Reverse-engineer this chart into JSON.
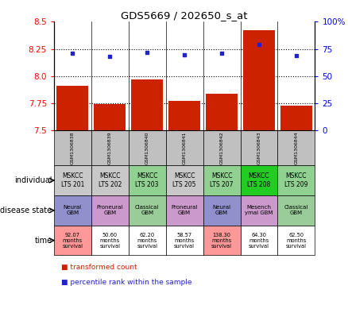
{
  "title": "GDS5669 / 202650_s_at",
  "samples": [
    "GSM1306838",
    "GSM1306839",
    "GSM1306840",
    "GSM1306841",
    "GSM1306842",
    "GSM1306843",
    "GSM1306844"
  ],
  "bar_values": [
    7.91,
    7.74,
    7.97,
    7.77,
    7.84,
    8.42,
    7.73
  ],
  "dot_values": [
    71,
    68,
    72,
    70,
    71,
    79,
    69
  ],
  "ylim_left": [
    7.5,
    8.5
  ],
  "ylim_right": [
    0,
    100
  ],
  "yticks_left": [
    7.5,
    7.75,
    8.0,
    8.25,
    8.5
  ],
  "yticks_right": [
    0,
    25,
    50,
    75,
    100
  ],
  "individual_labels": [
    "MSKCC\nLTS 201",
    "MSKCC\nLTS 202",
    "MSKCC\nLTS 203",
    "MSKCC\nLTS 205",
    "MSKCC\nLTS 207",
    "MSKCC\nLTS 208",
    "MSKCC\nLTS 209"
  ],
  "individual_colors": [
    "#c8c8c8",
    "#c8c8c8",
    "#90d090",
    "#c8c8c8",
    "#90d090",
    "#22cc22",
    "#90d090"
  ],
  "disease_labels": [
    "Neural\nGBM",
    "Proneural\nGBM",
    "Classical\nGBM",
    "Proneural\nGBM",
    "Neural\nGBM",
    "Mesench\nymal GBM",
    "Classical\nGBM"
  ],
  "disease_colors": [
    "#9090cc",
    "#cc99cc",
    "#99cc99",
    "#cc99cc",
    "#9090cc",
    "#cc99cc",
    "#99cc99"
  ],
  "time_labels": [
    "92.07\nmonths\nsurvival",
    "50.60\nmonths\nsurvival",
    "62.20\nmonths\nsurvival",
    "58.57\nmonths\nsurvival",
    "138.30\nmonths\nsurvival",
    "64.30\nmonths\nsurvival",
    "62.50\nmonths\nsurvival"
  ],
  "time_colors": [
    "#ff9999",
    "#ffffff",
    "#ffffff",
    "#ffffff",
    "#ff9999",
    "#ffffff",
    "#ffffff"
  ],
  "bar_color": "#cc2200",
  "dot_color": "#2222cc",
  "legend_bar_label": "transformed count",
  "legend_dot_label": "percentile rank within the sample",
  "row_labels": [
    "individual",
    "disease state",
    "time"
  ],
  "gsm_bg_color": "#c0c0c0",
  "hgrid_values": [
    7.75,
    8.0,
    8.25
  ]
}
